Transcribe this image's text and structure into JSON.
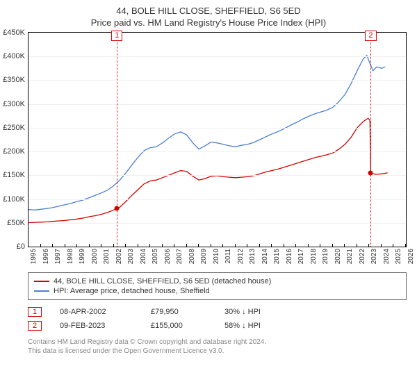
{
  "title": {
    "line1": "44, BOLE HILL CLOSE, SHEFFIELD, S6 5ED",
    "line2": "Price paid vs. HM Land Registry's House Price Index (HPI)"
  },
  "chart": {
    "type": "line",
    "background_color": "#ffffff",
    "grid_color": "#f0f0f0",
    "plot_border": "#000000",
    "font_family": "Arial",
    "x": {
      "min": 1995,
      "max": 2026,
      "ticks": [
        1995,
        1996,
        1997,
        1998,
        1999,
        2000,
        2001,
        2002,
        2003,
        2004,
        2005,
        2006,
        2007,
        2008,
        2009,
        2010,
        2011,
        2012,
        2013,
        2014,
        2015,
        2016,
        2017,
        2018,
        2019,
        2020,
        2021,
        2022,
        2023,
        2024,
        2025,
        2026
      ],
      "label_fontsize": 10
    },
    "y": {
      "min": 0,
      "max": 450000,
      "ticks": [
        0,
        50000,
        100000,
        150000,
        200000,
        250000,
        300000,
        350000,
        400000,
        450000
      ],
      "tick_labels": [
        "£0",
        "£50K",
        "£100K",
        "£150K",
        "£200K",
        "£250K",
        "£300K",
        "£350K",
        "£400K",
        "£450K"
      ],
      "label_fontsize": 11
    },
    "series": [
      {
        "key": "property",
        "label": "44, BOLE HILL CLOSE, SHEFFIELD, S6 5ED (detached house)",
        "color": "#d40000",
        "line_width": 1.3,
        "data": [
          [
            1995.0,
            50000
          ],
          [
            1995.5,
            51000
          ],
          [
            1996.0,
            51500
          ],
          [
            1996.5,
            52000
          ],
          [
            1997.0,
            53000
          ],
          [
            1997.5,
            54000
          ],
          [
            1998.0,
            55000
          ],
          [
            1998.5,
            56500
          ],
          [
            1999.0,
            58000
          ],
          [
            1999.5,
            60000
          ],
          [
            2000.0,
            63000
          ],
          [
            2000.5,
            65000
          ],
          [
            2001.0,
            68000
          ],
          [
            2001.5,
            72000
          ],
          [
            2002.0,
            77000
          ],
          [
            2002.27,
            79950
          ],
          [
            2002.5,
            83000
          ],
          [
            2003.0,
            95000
          ],
          [
            2003.5,
            108000
          ],
          [
            2004.0,
            120000
          ],
          [
            2004.5,
            132000
          ],
          [
            2005.0,
            138000
          ],
          [
            2005.5,
            140000
          ],
          [
            2006.0,
            145000
          ],
          [
            2006.5,
            150000
          ],
          [
            2007.0,
            155000
          ],
          [
            2007.5,
            160000
          ],
          [
            2008.0,
            158000
          ],
          [
            2008.5,
            148000
          ],
          [
            2009.0,
            140000
          ],
          [
            2009.5,
            143000
          ],
          [
            2010.0,
            148000
          ],
          [
            2010.5,
            149000
          ],
          [
            2011.0,
            147000
          ],
          [
            2011.5,
            146000
          ],
          [
            2012.0,
            145000
          ],
          [
            2012.5,
            146000
          ],
          [
            2013.0,
            147000
          ],
          [
            2013.5,
            149000
          ],
          [
            2014.0,
            153000
          ],
          [
            2014.5,
            157000
          ],
          [
            2015.0,
            160000
          ],
          [
            2015.5,
            163000
          ],
          [
            2016.0,
            167000
          ],
          [
            2016.5,
            171000
          ],
          [
            2017.0,
            175000
          ],
          [
            2017.5,
            179000
          ],
          [
            2018.0,
            183000
          ],
          [
            2018.5,
            187000
          ],
          [
            2019.0,
            190000
          ],
          [
            2019.5,
            193000
          ],
          [
            2020.0,
            197000
          ],
          [
            2020.5,
            205000
          ],
          [
            2021.0,
            215000
          ],
          [
            2021.5,
            230000
          ],
          [
            2022.0,
            250000
          ],
          [
            2022.5,
            263000
          ],
          [
            2022.9,
            270000
          ],
          [
            2023.05,
            265000
          ],
          [
            2023.11,
            155000
          ],
          [
            2023.5,
            152000
          ],
          [
            2024.0,
            153000
          ],
          [
            2024.5,
            155000
          ]
        ]
      },
      {
        "key": "hpi",
        "label": "HPI: Average price, detached house, Sheffield",
        "color": "#4a7fd4",
        "line_width": 1.3,
        "data": [
          [
            1995.0,
            78000
          ],
          [
            1995.5,
            77000
          ],
          [
            1996.0,
            78500
          ],
          [
            1996.5,
            80000
          ],
          [
            1997.0,
            82000
          ],
          [
            1997.5,
            85000
          ],
          [
            1998.0,
            88000
          ],
          [
            1998.5,
            91000
          ],
          [
            1999.0,
            95000
          ],
          [
            1999.5,
            98000
          ],
          [
            2000.0,
            103000
          ],
          [
            2000.5,
            108000
          ],
          [
            2001.0,
            113000
          ],
          [
            2001.5,
            119000
          ],
          [
            2002.0,
            128000
          ],
          [
            2002.5,
            140000
          ],
          [
            2003.0,
            155000
          ],
          [
            2003.5,
            172000
          ],
          [
            2004.0,
            188000
          ],
          [
            2004.5,
            202000
          ],
          [
            2005.0,
            208000
          ],
          [
            2005.5,
            210000
          ],
          [
            2006.0,
            218000
          ],
          [
            2006.5,
            228000
          ],
          [
            2007.0,
            237000
          ],
          [
            2007.5,
            241000
          ],
          [
            2008.0,
            235000
          ],
          [
            2008.5,
            218000
          ],
          [
            2009.0,
            205000
          ],
          [
            2009.5,
            212000
          ],
          [
            2010.0,
            220000
          ],
          [
            2010.5,
            218000
          ],
          [
            2011.0,
            215000
          ],
          [
            2011.5,
            212000
          ],
          [
            2012.0,
            210000
          ],
          [
            2012.5,
            213000
          ],
          [
            2013.0,
            215000
          ],
          [
            2013.5,
            219000
          ],
          [
            2014.0,
            225000
          ],
          [
            2014.5,
            231000
          ],
          [
            2015.0,
            237000
          ],
          [
            2015.5,
            242000
          ],
          [
            2016.0,
            248000
          ],
          [
            2016.5,
            255000
          ],
          [
            2017.0,
            261000
          ],
          [
            2017.5,
            268000
          ],
          [
            2018.0,
            274000
          ],
          [
            2018.5,
            279000
          ],
          [
            2019.0,
            283000
          ],
          [
            2019.5,
            287000
          ],
          [
            2020.0,
            293000
          ],
          [
            2020.5,
            305000
          ],
          [
            2021.0,
            320000
          ],
          [
            2021.5,
            343000
          ],
          [
            2022.0,
            370000
          ],
          [
            2022.5,
            395000
          ],
          [
            2022.8,
            402000
          ],
          [
            2023.0,
            388000
          ],
          [
            2023.3,
            370000
          ],
          [
            2023.6,
            378000
          ],
          [
            2024.0,
            375000
          ],
          [
            2024.3,
            378000
          ]
        ]
      }
    ],
    "sale_markers": [
      {
        "num": "1",
        "x": 2002.27,
        "y": 79950,
        "color": "#d40000"
      },
      {
        "num": "2",
        "x": 2023.11,
        "y": 155000,
        "color": "#d40000"
      }
    ]
  },
  "legend": {
    "items": [
      {
        "color": "#d40000",
        "text": "44, BOLE HILL CLOSE, SHEFFIELD, S6 5ED (detached house)"
      },
      {
        "color": "#4a7fd4",
        "text": "HPI: Average price, detached house, Sheffield"
      }
    ]
  },
  "sales_table": {
    "rows": [
      {
        "num": "1",
        "color": "#d40000",
        "date": "08-APR-2002",
        "price": "£79,950",
        "delta": "30% ↓ HPI"
      },
      {
        "num": "2",
        "color": "#d40000",
        "date": "09-FEB-2023",
        "price": "£155,000",
        "delta": "58% ↓ HPI"
      }
    ]
  },
  "copyright": {
    "line1": "Contains HM Land Registry data © Crown copyright and database right 2024.",
    "line2": "This data is licensed under the Open Government Licence v3.0."
  }
}
